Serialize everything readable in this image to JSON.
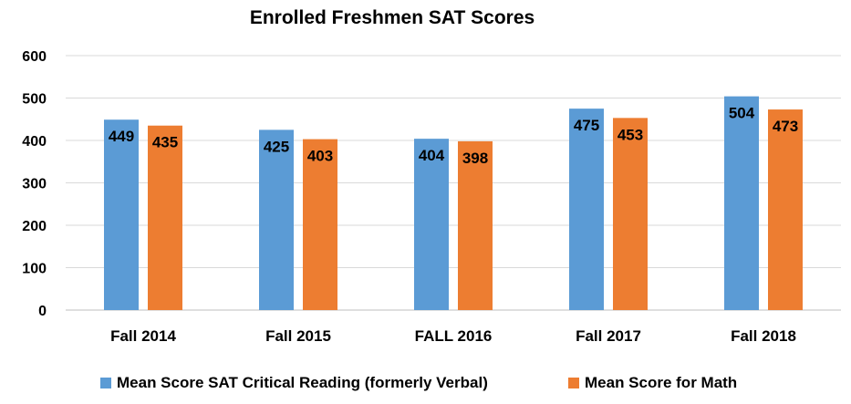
{
  "chart_data": {
    "type": "bar",
    "title": "Enrolled Freshmen SAT Scores",
    "xlabel": "",
    "ylabel": "",
    "categories": [
      "Fall 2014",
      "Fall 2015",
      "FALL 2016",
      "Fall 2017",
      "Fall 2018"
    ],
    "series": [
      {
        "name": "Mean Score SAT Critical Reading (formerly Verbal)",
        "values": [
          449,
          425,
          404,
          475,
          504
        ],
        "color": "#5B9BD5"
      },
      {
        "name": "Mean Score for Math",
        "values": [
          435,
          403,
          398,
          453,
          473
        ],
        "color": "#ED7D31"
      }
    ],
    "ylim": [
      0,
      600
    ],
    "yticks": [
      0,
      100,
      200,
      300,
      400,
      500,
      600
    ],
    "grid": true,
    "legend_position": "bottom",
    "data_labels": "inside-top"
  }
}
